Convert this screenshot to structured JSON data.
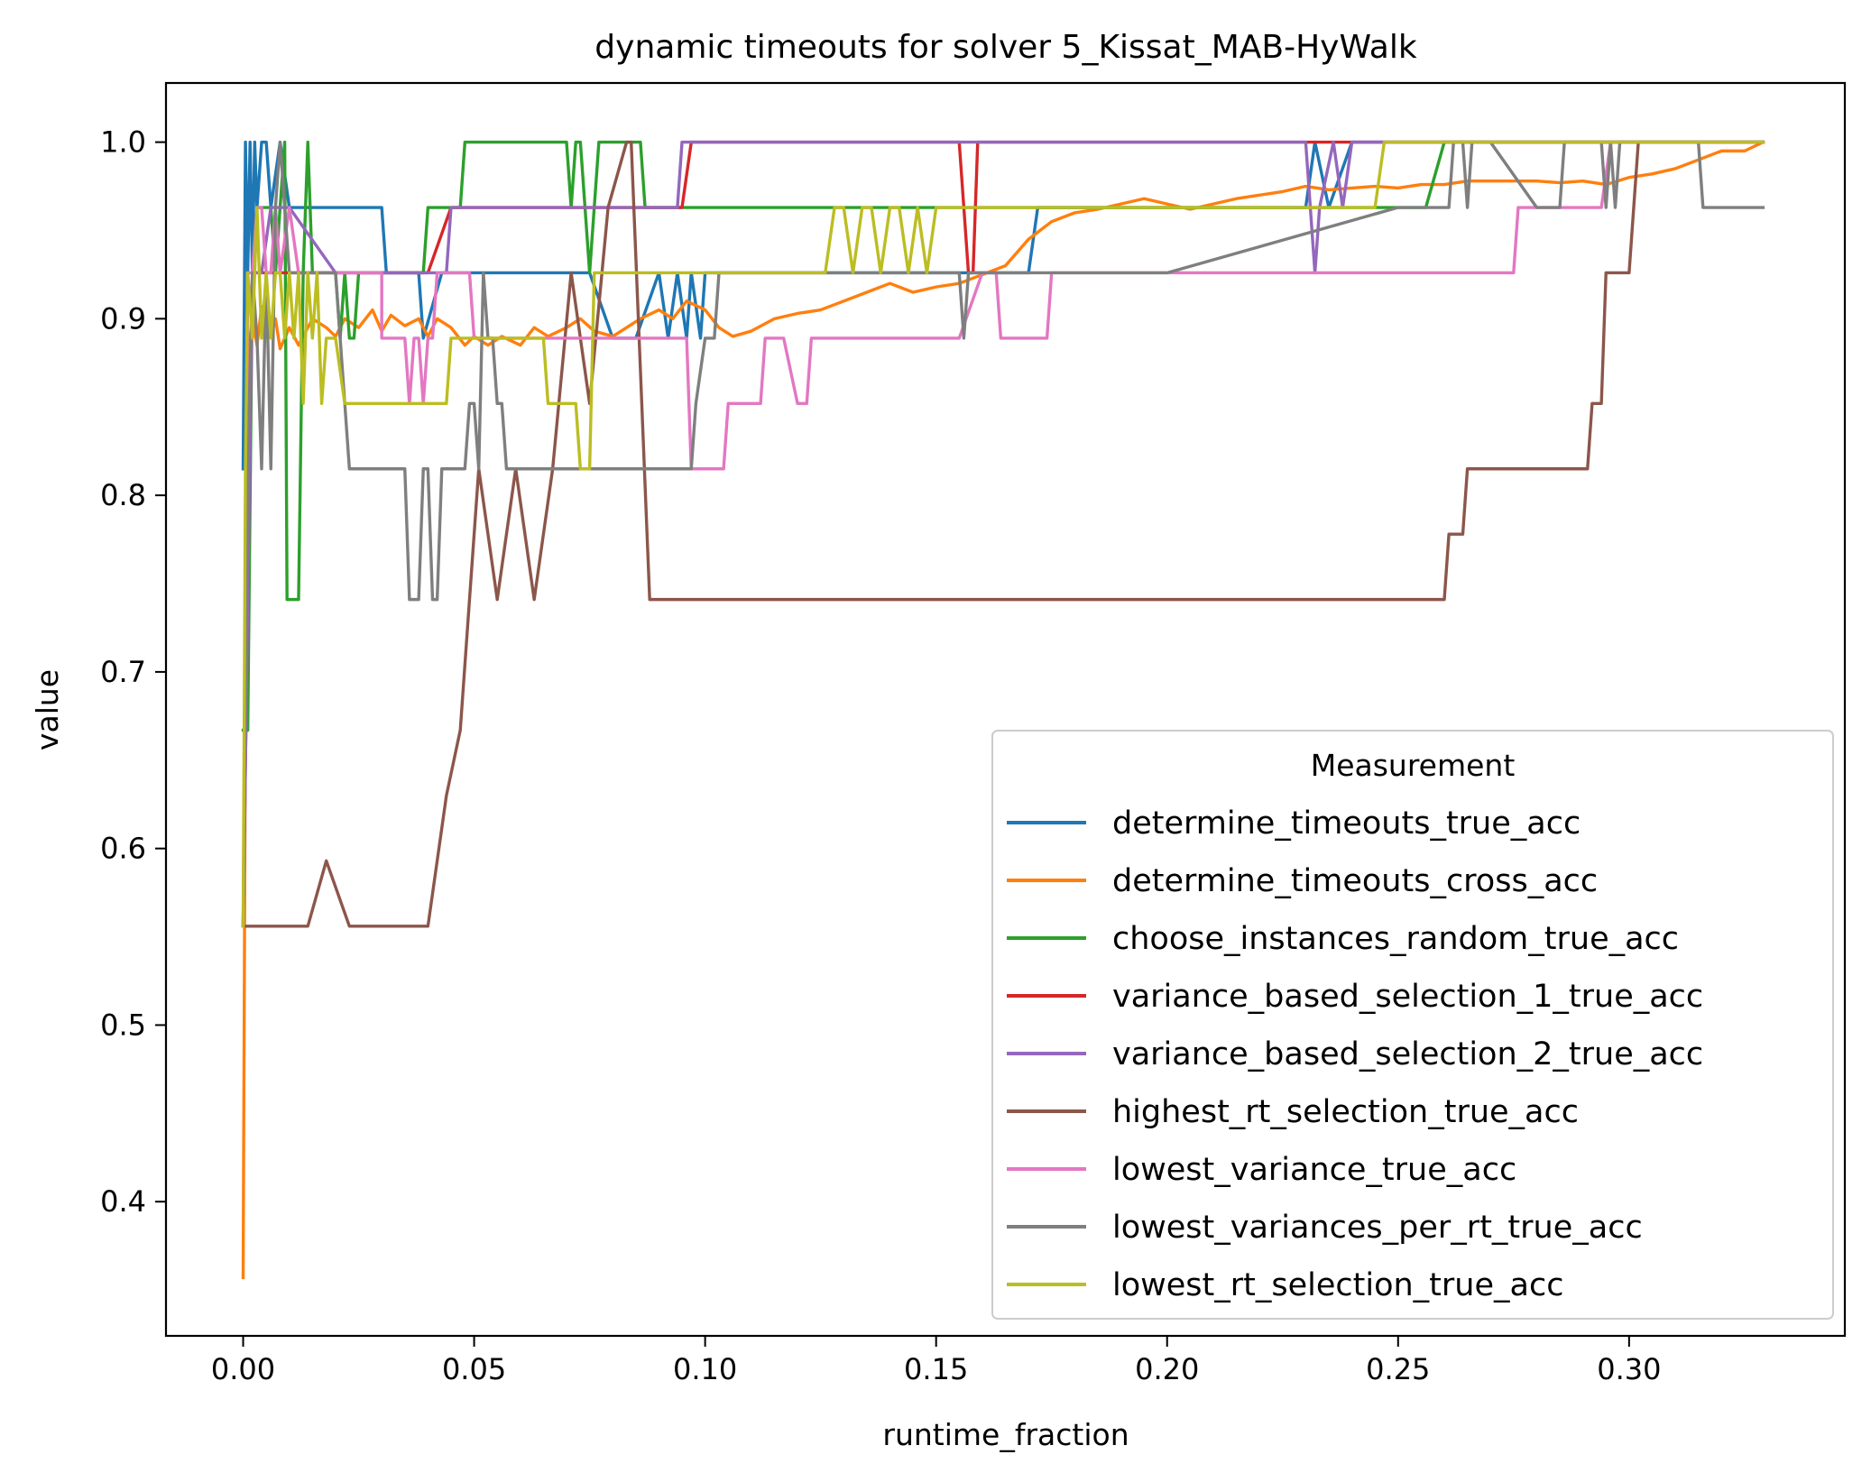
{
  "chart_data": {
    "type": "line",
    "title": "dynamic timeouts for solver 5_Kissat_MAB-HyWalk",
    "xlabel": "runtime_fraction",
    "ylabel": "value",
    "xlim": [
      -0.0167,
      0.3467
    ],
    "ylim": [
      0.324,
      1.0335
    ],
    "xticks": [
      0.0,
      0.05,
      0.1,
      0.15,
      0.2,
      0.25,
      0.3
    ],
    "xtick_labels": [
      "0.00",
      "0.05",
      "0.10",
      "0.15",
      "0.20",
      "0.25",
      "0.30"
    ],
    "yticks": [
      0.4,
      0.5,
      0.6,
      0.7,
      0.8,
      0.9,
      1.0
    ],
    "ytick_labels": [
      "0.4",
      "0.5",
      "0.6",
      "0.7",
      "0.8",
      "0.9",
      "1.0"
    ],
    "grid": false,
    "legend": {
      "title": "Measurement",
      "placement": "lower-right"
    },
    "series": [
      {
        "name": "determine_timeouts_true_acc",
        "color": "#1f77b4",
        "x": [
          0.0,
          0.0005,
          0.001,
          0.0015,
          0.002,
          0.0025,
          0.003,
          0.004,
          0.005,
          0.006,
          0.008,
          0.01,
          0.015,
          0.02,
          0.03,
          0.031,
          0.038,
          0.039,
          0.043,
          0.045,
          0.05,
          0.055,
          0.06,
          0.065,
          0.07,
          0.075,
          0.08,
          0.085,
          0.09,
          0.092,
          0.094,
          0.096,
          0.097,
          0.099,
          0.1,
          0.11,
          0.12,
          0.13,
          0.14,
          0.15,
          0.16,
          0.162,
          0.165,
          0.17,
          0.172,
          0.2,
          0.23,
          0.232,
          0.235,
          0.24,
          0.25,
          0.28,
          0.3,
          0.329
        ],
        "y": [
          0.815,
          1.0,
          0.926,
          1.0,
          0.926,
          1.0,
          0.963,
          1.0,
          1.0,
          0.963,
          1.0,
          0.963,
          0.963,
          0.963,
          0.963,
          0.926,
          0.926,
          0.889,
          0.926,
          0.926,
          0.926,
          0.926,
          0.926,
          0.926,
          0.926,
          0.926,
          0.889,
          0.889,
          0.926,
          0.889,
          0.926,
          0.889,
          0.926,
          0.889,
          0.926,
          0.926,
          0.926,
          0.926,
          0.926,
          0.926,
          0.926,
          0.926,
          0.926,
          0.926,
          0.963,
          0.963,
          0.963,
          1.0,
          0.963,
          1.0,
          1.0,
          1.0,
          1.0,
          1.0
        ]
      },
      {
        "name": "determine_timeouts_cross_acc",
        "color": "#ff7f0e",
        "x": [
          0.0,
          0.0003,
          0.0006,
          0.001,
          0.002,
          0.003,
          0.004,
          0.005,
          0.006,
          0.007,
          0.008,
          0.01,
          0.012,
          0.015,
          0.018,
          0.02,
          0.022,
          0.025,
          0.028,
          0.03,
          0.032,
          0.035,
          0.038,
          0.04,
          0.042,
          0.045,
          0.048,
          0.05,
          0.053,
          0.056,
          0.06,
          0.063,
          0.066,
          0.07,
          0.073,
          0.076,
          0.08,
          0.083,
          0.086,
          0.09,
          0.093,
          0.096,
          0.1,
          0.103,
          0.106,
          0.11,
          0.115,
          0.12,
          0.125,
          0.13,
          0.135,
          0.14,
          0.145,
          0.15,
          0.155,
          0.16,
          0.165,
          0.17,
          0.175,
          0.18,
          0.185,
          0.19,
          0.195,
          0.2,
          0.205,
          0.21,
          0.215,
          0.22,
          0.225,
          0.23,
          0.235,
          0.24,
          0.245,
          0.25,
          0.255,
          0.26,
          0.265,
          0.27,
          0.275,
          0.28,
          0.285,
          0.29,
          0.295,
          0.3,
          0.305,
          0.31,
          0.315,
          0.32,
          0.325,
          0.329
        ],
        "y": [
          0.357,
          0.55,
          0.75,
          0.88,
          0.9,
          0.885,
          0.907,
          0.9,
          0.89,
          0.9,
          0.883,
          0.895,
          0.885,
          0.9,
          0.895,
          0.89,
          0.9,
          0.895,
          0.905,
          0.893,
          0.902,
          0.896,
          0.9,
          0.89,
          0.9,
          0.895,
          0.885,
          0.89,
          0.885,
          0.89,
          0.885,
          0.895,
          0.89,
          0.895,
          0.9,
          0.893,
          0.89,
          0.895,
          0.9,
          0.905,
          0.9,
          0.91,
          0.905,
          0.895,
          0.89,
          0.893,
          0.9,
          0.903,
          0.905,
          0.91,
          0.915,
          0.92,
          0.915,
          0.918,
          0.92,
          0.925,
          0.93,
          0.945,
          0.955,
          0.96,
          0.962,
          0.965,
          0.968,
          0.965,
          0.962,
          0.965,
          0.968,
          0.97,
          0.972,
          0.975,
          0.973,
          0.974,
          0.975,
          0.974,
          0.976,
          0.976,
          0.978,
          0.978,
          0.978,
          0.978,
          0.977,
          0.978,
          0.976,
          0.98,
          0.982,
          0.985,
          0.99,
          0.995,
          0.995,
          1.0
        ]
      },
      {
        "name": "choose_instances_random_true_acc",
        "color": "#2ca02c",
        "x": [
          0.0,
          0.001,
          0.002,
          0.003,
          0.004,
          0.005,
          0.006,
          0.007,
          0.008,
          0.009,
          0.0095,
          0.012,
          0.013,
          0.014,
          0.015,
          0.016,
          0.02,
          0.021,
          0.022,
          0.023,
          0.024,
          0.025,
          0.03,
          0.035,
          0.039,
          0.04,
          0.045,
          0.047,
          0.048,
          0.06,
          0.07,
          0.071,
          0.072,
          0.073,
          0.074,
          0.075,
          0.076,
          0.077,
          0.08,
          0.086,
          0.087,
          0.09,
          0.1,
          0.12,
          0.15,
          0.2,
          0.25,
          0.254,
          0.256,
          0.26,
          0.3,
          0.329
        ],
        "y": [
          0.667,
          0.667,
          0.926,
          0.963,
          0.963,
          0.963,
          0.963,
          0.926,
          0.963,
          1.0,
          0.741,
          0.741,
          0.926,
          1.0,
          0.926,
          0.926,
          0.926,
          0.889,
          0.926,
          0.889,
          0.889,
          0.926,
          0.926,
          0.926,
          0.926,
          0.963,
          0.963,
          0.963,
          1.0,
          1.0,
          1.0,
          0.963,
          1.0,
          1.0,
          0.963,
          0.926,
          0.963,
          1.0,
          1.0,
          1.0,
          0.963,
          0.963,
          0.963,
          0.963,
          0.963,
          0.963,
          0.963,
          0.963,
          0.963,
          1.0,
          1.0,
          1.0
        ]
      },
      {
        "name": "variance_based_selection_1_true_acc",
        "color": "#d62728",
        "x": [
          0.0,
          0.002,
          0.004,
          0.006,
          0.01,
          0.02,
          0.04,
          0.045,
          0.048,
          0.049,
          0.05,
          0.06,
          0.07,
          0.08,
          0.09,
          0.094,
          0.095,
          0.097,
          0.1,
          0.12,
          0.14,
          0.155,
          0.157,
          0.158,
          0.159,
          0.16,
          0.18,
          0.2,
          0.22,
          0.229,
          0.23,
          0.234,
          0.236,
          0.24,
          0.26,
          0.28,
          0.3,
          0.329
        ],
        "y": [
          0.556,
          0.926,
          0.926,
          0.926,
          0.926,
          0.926,
          0.926,
          0.963,
          0.963,
          0.963,
          0.963,
          0.963,
          0.963,
          0.963,
          0.963,
          0.963,
          0.963,
          1.0,
          1.0,
          1.0,
          1.0,
          1.0,
          0.926,
          0.926,
          1.0,
          1.0,
          1.0,
          1.0,
          1.0,
          1.0,
          1.0,
          1.0,
          1.0,
          1.0,
          1.0,
          1.0,
          1.0,
          1.0
        ]
      },
      {
        "name": "variance_based_selection_2_true_acc",
        "color": "#9467bd",
        "x": [
          0.0,
          0.002,
          0.004,
          0.006,
          0.01,
          0.02,
          0.03,
          0.04,
          0.044,
          0.045,
          0.06,
          0.09,
          0.094,
          0.095,
          0.12,
          0.15,
          0.2,
          0.23,
          0.231,
          0.232,
          0.233,
          0.236,
          0.238,
          0.24,
          0.26,
          0.3,
          0.329
        ],
        "y": [
          0.556,
          0.926,
          0.926,
          0.963,
          0.963,
          0.926,
          0.926,
          0.926,
          0.926,
          0.963,
          0.963,
          0.963,
          0.963,
          1.0,
          1.0,
          1.0,
          1.0,
          1.0,
          0.963,
          0.926,
          0.963,
          1.0,
          0.963,
          1.0,
          1.0,
          1.0,
          1.0
        ]
      },
      {
        "name": "highest_rt_selection_true_acc",
        "color": "#8c564b",
        "x": [
          0.0,
          0.001,
          0.003,
          0.005,
          0.014,
          0.018,
          0.023,
          0.035,
          0.04,
          0.044,
          0.047,
          0.051,
          0.055,
          0.059,
          0.063,
          0.067,
          0.071,
          0.075,
          0.079,
          0.083,
          0.084,
          0.088,
          0.1,
          0.15,
          0.2,
          0.25,
          0.26,
          0.261,
          0.263,
          0.264,
          0.265,
          0.267,
          0.27,
          0.28,
          0.29,
          0.291,
          0.292,
          0.294,
          0.295,
          0.296,
          0.297,
          0.3,
          0.301,
          0.302,
          0.329
        ],
        "y": [
          0.556,
          0.556,
          0.556,
          0.556,
          0.556,
          0.593,
          0.556,
          0.556,
          0.556,
          0.63,
          0.667,
          0.815,
          0.741,
          0.815,
          0.741,
          0.815,
          0.926,
          0.852,
          0.963,
          1.0,
          1.0,
          0.741,
          0.741,
          0.741,
          0.741,
          0.741,
          0.741,
          0.778,
          0.778,
          0.778,
          0.815,
          0.815,
          0.815,
          0.815,
          0.815,
          0.815,
          0.852,
          0.852,
          0.926,
          0.926,
          0.926,
          0.926,
          0.963,
          1.0,
          1.0
        ]
      },
      {
        "name": "lowest_variance_true_acc",
        "color": "#e377c2",
        "x": [
          0.0,
          0.001,
          0.002,
          0.003,
          0.004,
          0.005,
          0.006,
          0.007,
          0.008,
          0.01,
          0.012,
          0.015,
          0.018,
          0.02,
          0.03,
          0.03,
          0.035,
          0.036,
          0.037,
          0.038,
          0.039,
          0.04,
          0.041,
          0.042,
          0.049,
          0.05,
          0.06,
          0.07,
          0.08,
          0.09,
          0.096,
          0.097,
          0.1,
          0.104,
          0.105,
          0.112,
          0.113,
          0.116,
          0.117,
          0.12,
          0.122,
          0.123,
          0.15,
          0.155,
          0.16,
          0.163,
          0.164,
          0.167,
          0.17,
          0.174,
          0.175,
          0.18,
          0.2,
          0.25,
          0.275,
          0.276,
          0.29,
          0.292,
          0.294,
          0.296,
          0.3,
          0.329
        ],
        "y": [
          0.556,
          0.926,
          0.926,
          0.963,
          0.963,
          0.926,
          0.926,
          0.963,
          0.926,
          0.963,
          0.926,
          0.926,
          0.926,
          0.926,
          0.926,
          0.889,
          0.889,
          0.852,
          0.889,
          0.889,
          0.852,
          0.889,
          0.889,
          0.926,
          0.926,
          0.889,
          0.889,
          0.889,
          0.889,
          0.889,
          0.889,
          0.815,
          0.815,
          0.815,
          0.852,
          0.852,
          0.889,
          0.889,
          0.889,
          0.852,
          0.852,
          0.889,
          0.889,
          0.889,
          0.926,
          0.926,
          0.889,
          0.889,
          0.889,
          0.889,
          0.926,
          0.926,
          0.926,
          0.926,
          0.926,
          0.963,
          0.963,
          0.963,
          0.963,
          1.0,
          1.0,
          1.0
        ]
      },
      {
        "name": "lowest_variances_per_rt_true_acc",
        "color": "#7f7f7f",
        "x": [
          0.0,
          0.001,
          0.002,
          0.003,
          0.004,
          0.005,
          0.006,
          0.007,
          0.008,
          0.009,
          0.01,
          0.012,
          0.015,
          0.02,
          0.022,
          0.023,
          0.03,
          0.035,
          0.036,
          0.038,
          0.039,
          0.04,
          0.041,
          0.042,
          0.043,
          0.044,
          0.045,
          0.048,
          0.049,
          0.05,
          0.051,
          0.052,
          0.053,
          0.054,
          0.055,
          0.056,
          0.057,
          0.058,
          0.06,
          0.08,
          0.097,
          0.098,
          0.1,
          0.102,
          0.103,
          0.104,
          0.105,
          0.12,
          0.15,
          0.155,
          0.156,
          0.157,
          0.16,
          0.18,
          0.2,
          0.25,
          0.26,
          0.261,
          0.262,
          0.263,
          0.264,
          0.265,
          0.266,
          0.27,
          0.28,
          0.285,
          0.286,
          0.29,
          0.294,
          0.295,
          0.296,
          0.297,
          0.298,
          0.3,
          0.315,
          0.316,
          0.318,
          0.329
        ],
        "y": [
          0.556,
          0.815,
          0.926,
          0.889,
          0.815,
          0.926,
          0.815,
          0.963,
          1.0,
          0.963,
          0.926,
          0.926,
          0.926,
          0.926,
          0.852,
          0.815,
          0.815,
          0.815,
          0.741,
          0.741,
          0.815,
          0.815,
          0.741,
          0.741,
          0.815,
          0.815,
          0.815,
          0.815,
          0.852,
          0.852,
          0.815,
          0.926,
          0.889,
          0.889,
          0.852,
          0.852,
          0.815,
          0.815,
          0.815,
          0.815,
          0.815,
          0.852,
          0.889,
          0.889,
          0.926,
          0.926,
          0.926,
          0.926,
          0.926,
          0.926,
          0.889,
          0.926,
          0.926,
          0.926,
          0.926,
          0.963,
          0.963,
          0.963,
          1.0,
          1.0,
          1.0,
          0.963,
          1.0,
          1.0,
          0.963,
          0.963,
          1.0,
          1.0,
          1.0,
          0.963,
          1.0,
          0.963,
          1.0,
          1.0,
          1.0,
          0.963,
          0.963,
          0.963
        ]
      },
      {
        "name": "lowest_rt_selection_true_acc",
        "color": "#bcbd22",
        "x": [
          0.0,
          0.0005,
          0.001,
          0.002,
          0.003,
          0.004,
          0.005,
          0.006,
          0.007,
          0.008,
          0.009,
          0.01,
          0.011,
          0.012,
          0.013,
          0.014,
          0.015,
          0.016,
          0.017,
          0.018,
          0.019,
          0.02,
          0.022,
          0.023,
          0.03,
          0.04,
          0.044,
          0.045,
          0.05,
          0.06,
          0.065,
          0.066,
          0.07,
          0.072,
          0.073,
          0.074,
          0.075,
          0.076,
          0.08,
          0.09,
          0.1,
          0.11,
          0.12,
          0.125,
          0.126,
          0.128,
          0.13,
          0.132,
          0.134,
          0.136,
          0.138,
          0.14,
          0.142,
          0.144,
          0.146,
          0.148,
          0.15,
          0.155,
          0.16,
          0.2,
          0.24,
          0.245,
          0.247,
          0.25,
          0.3,
          0.329
        ],
        "y": [
          0.556,
          0.815,
          0.926,
          0.889,
          0.963,
          0.889,
          0.926,
          0.889,
          0.926,
          0.926,
          0.889,
          0.926,
          0.889,
          0.926,
          0.852,
          0.926,
          0.889,
          0.926,
          0.852,
          0.889,
          0.889,
          0.889,
          0.852,
          0.852,
          0.852,
          0.852,
          0.852,
          0.889,
          0.889,
          0.889,
          0.889,
          0.852,
          0.852,
          0.852,
          0.815,
          0.815,
          0.815,
          0.926,
          0.926,
          0.926,
          0.926,
          0.926,
          0.926,
          0.926,
          0.926,
          0.963,
          0.963,
          0.926,
          0.963,
          0.963,
          0.926,
          0.963,
          0.963,
          0.926,
          0.963,
          0.926,
          0.963,
          0.963,
          0.963,
          0.963,
          0.963,
          0.963,
          1.0,
          1.0,
          1.0,
          1.0
        ]
      }
    ]
  }
}
